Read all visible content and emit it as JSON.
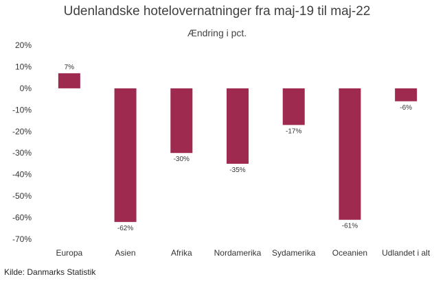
{
  "chart_data": {
    "type": "bar",
    "title": "Udenlandske hotelovernatninger fra maj-19 til maj-22",
    "subtitle": "Ændring i pct.",
    "categories": [
      "Europa",
      "Asien",
      "Afrika",
      "Nordamerika",
      "Sydamerika",
      "Oceanien",
      "Udlandet i alt"
    ],
    "values": [
      7,
      -62,
      -30,
      -35,
      -17,
      -61,
      -6
    ],
    "data_labels": [
      "7%",
      "-62%",
      "-30%",
      "-35%",
      "-17%",
      "-61%",
      "-6%"
    ],
    "ylim": [
      -70,
      20
    ],
    "yticks": [
      20,
      10,
      0,
      -10,
      -20,
      -30,
      -40,
      -50,
      -60,
      -70
    ],
    "ytick_labels": [
      "20%",
      "10%",
      "0%",
      "-10%",
      "-20%",
      "-30%",
      "-40%",
      "-50%",
      "-60%",
      "-70%"
    ],
    "xlabel": "",
    "ylabel": "",
    "grid": false,
    "bar_color": "#9e2a4f"
  },
  "source": "Kilde: Danmarks Statistik"
}
